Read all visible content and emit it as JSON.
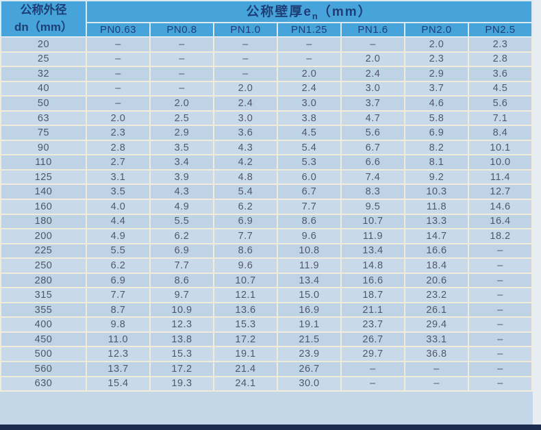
{
  "table": {
    "corner_header": {
      "line1": "公称外径",
      "line2": "dn（mm）"
    },
    "main_header": {
      "prefix": "公称壁厚e",
      "subscript": "n",
      "suffix": "（mm）"
    },
    "pn_columns": [
      "PN0.63",
      "PN0.8",
      "PN1.0",
      "PN1.25",
      "PN1.6",
      "PN2.0",
      "PN2.5"
    ],
    "rows": [
      {
        "dn": "20",
        "values": [
          "–",
          "–",
          "–",
          "–",
          "–",
          "2.0",
          "2.3"
        ]
      },
      {
        "dn": "25",
        "values": [
          "–",
          "–",
          "–",
          "–",
          "2.0",
          "2.3",
          "2.8"
        ]
      },
      {
        "dn": "32",
        "values": [
          "–",
          "–",
          "–",
          "2.0",
          "2.4",
          "2.9",
          "3.6"
        ]
      },
      {
        "dn": "40",
        "values": [
          "–",
          "–",
          "2.0",
          "2.4",
          "3.0",
          "3.7",
          "4.5"
        ]
      },
      {
        "dn": "50",
        "values": [
          "–",
          "2.0",
          "2.4",
          "3.0",
          "3.7",
          "4.6",
          "5.6"
        ]
      },
      {
        "dn": "63",
        "values": [
          "2.0",
          "2.5",
          "3.0",
          "3.8",
          "4.7",
          "5.8",
          "7.1"
        ]
      },
      {
        "dn": "75",
        "values": [
          "2.3",
          "2.9",
          "3.6",
          "4.5",
          "5.6",
          "6.9",
          "8.4"
        ]
      },
      {
        "dn": "90",
        "values": [
          "2.8",
          "3.5",
          "4.3",
          "5.4",
          "6.7",
          "8.2",
          "10.1"
        ]
      },
      {
        "dn": "110",
        "values": [
          "2.7",
          "3.4",
          "4.2",
          "5.3",
          "6.6",
          "8.1",
          "10.0"
        ]
      },
      {
        "dn": "125",
        "values": [
          "3.1",
          "3.9",
          "4.8",
          "6.0",
          "7.4",
          "9.2",
          "11.4"
        ]
      },
      {
        "dn": "140",
        "values": [
          "3.5",
          "4.3",
          "5.4",
          "6.7",
          "8.3",
          "10.3",
          "12.7"
        ]
      },
      {
        "dn": "160",
        "values": [
          "4.0",
          "4.9",
          "6.2",
          "7.7",
          "9.5",
          "11.8",
          "14.6"
        ]
      },
      {
        "dn": "180",
        "values": [
          "4.4",
          "5.5",
          "6.9",
          "8.6",
          "10.7",
          "13.3",
          "16.4"
        ]
      },
      {
        "dn": "200",
        "values": [
          "4.9",
          "6.2",
          "7.7",
          "9.6",
          "11.9",
          "14.7",
          "18.2"
        ]
      },
      {
        "dn": "225",
        "values": [
          "5.5",
          "6.9",
          "8.6",
          "10.8",
          "13.4",
          "16.6",
          "–"
        ]
      },
      {
        "dn": "250",
        "values": [
          "6.2",
          "7.7",
          "9.6",
          "11.9",
          "14.8",
          "18.4",
          "–"
        ]
      },
      {
        "dn": "280",
        "values": [
          "6.9",
          "8.6",
          "10.7",
          "13.4",
          "16.6",
          "20.6",
          "–"
        ]
      },
      {
        "dn": "315",
        "values": [
          "7.7",
          "9.7",
          "12.1",
          "15.0",
          "18.7",
          "23.2",
          "–"
        ]
      },
      {
        "dn": "355",
        "values": [
          "8.7",
          "10.9",
          "13.6",
          "16.9",
          "21.1",
          "26.1",
          "–"
        ]
      },
      {
        "dn": "400",
        "values": [
          "9.8",
          "12.3",
          "15.3",
          "19.1",
          "23.7",
          "29.4",
          "–"
        ]
      },
      {
        "dn": "450",
        "values": [
          "11.0",
          "13.8",
          "17.2",
          "21.5",
          "26.7",
          "33.1",
          "–"
        ]
      },
      {
        "dn": "500",
        "values": [
          "12.3",
          "15.3",
          "19.1",
          "23.9",
          "29.7",
          "36.8",
          "–"
        ]
      },
      {
        "dn": "560",
        "values": [
          "13.7",
          "17.2",
          "21.4",
          "26.7",
          "–",
          "–",
          "–"
        ]
      },
      {
        "dn": "630",
        "values": [
          "15.4",
          "19.3",
          "24.1",
          "30.0",
          "–",
          "–",
          "–"
        ]
      }
    ]
  },
  "colors": {
    "header_bg": "#46a4da",
    "header_text": "#1d3e76",
    "row_bg": "#bed3e5",
    "row_alt_bg": "#c8daea",
    "grid_line": "#f1ecda",
    "value_text": "#4f586a",
    "bottom_bar": "#1b2c4e",
    "page_edge": "#e7edf3"
  }
}
